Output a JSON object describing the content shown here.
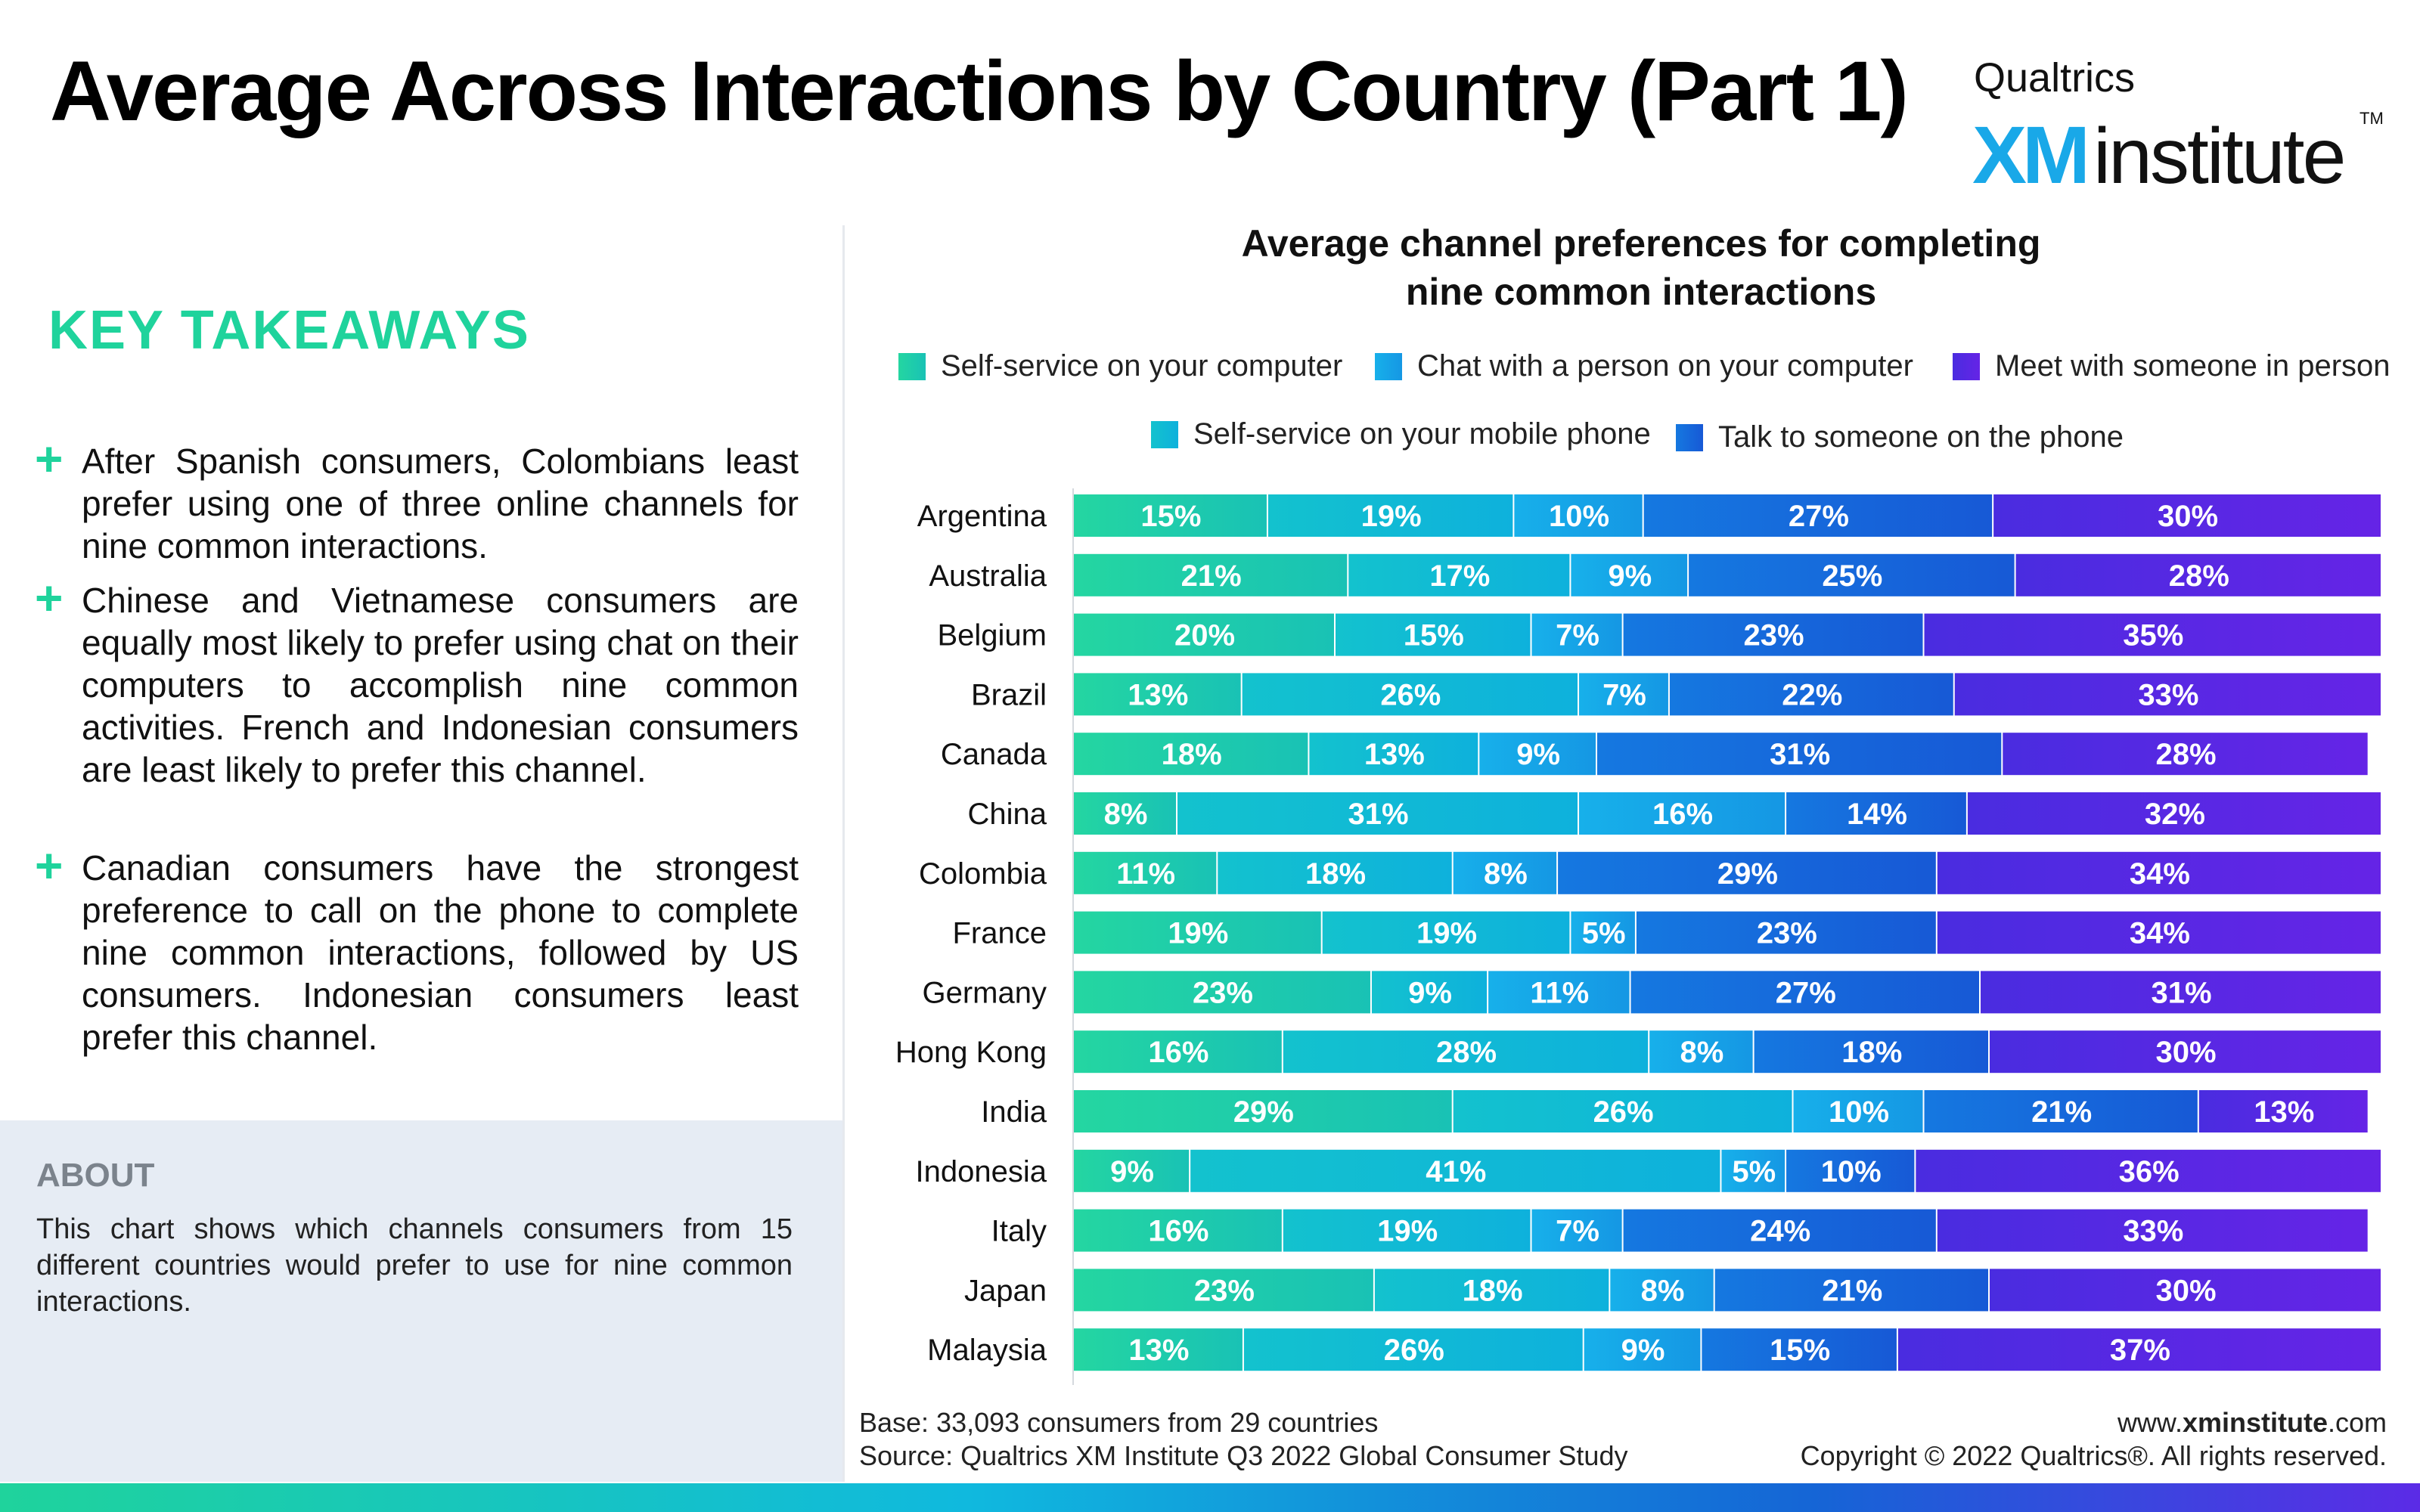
{
  "header": {
    "title": "Average Across Interactions by Country (Part 1)",
    "logo": {
      "top": "Qualtrics",
      "xm": "XM",
      "institute": "institute",
      "tm": "TM"
    }
  },
  "takeaways": {
    "heading": "KEY TAKEAWAYS",
    "plus_icon": "+",
    "items": [
      "After Spanish consumers, Colombians least prefer using one of three online channels for nine common interactions.",
      "Chinese and Vietnamese consumers are equally most likely to prefer using chat on their computers to accomplish nine common activities. French and Indonesian consumers are least likely to prefer this channel.",
      "Canadian consumers have the strongest preference to call on the phone to complete nine common interactions, followed by US consumers. Indonesian consumers least prefer this channel."
    ]
  },
  "about": {
    "heading": "ABOUT",
    "text": "This chart shows which channels consumers from 15 different countries would prefer to use for nine common interactions."
  },
  "footer": {
    "base": "Base: 33,093 consumers from 29 countries",
    "source": "Source: Qualtrics XM Institute Q3 2022 Global Consumer Study",
    "site_prefix": "www.",
    "site_bold": "xminstitute",
    "site_suffix": ".com",
    "copyright": "Copyright © 2022 Qualtrics®. All rights reserved."
  },
  "chart_data": {
    "type": "bar",
    "orientation": "horizontal",
    "stacked": true,
    "title_line1": "Average channel preferences for completing",
    "title_line2": "nine common interactions",
    "value_suffix": "%",
    "categories": [
      "Argentina",
      "Australia",
      "Belgium",
      "Brazil",
      "Canada",
      "China",
      "Colombia",
      "France",
      "Germany",
      "Hong Kong",
      "India",
      "Indonesia",
      "Italy",
      "Japan",
      "Malaysia"
    ],
    "series": [
      {
        "name": "Self-service on your computer",
        "color_start": "#24d6a1",
        "color_end": "#19c2b5",
        "values": [
          15,
          21,
          20,
          13,
          18,
          8,
          11,
          19,
          23,
          16,
          29,
          9,
          16,
          23,
          13
        ]
      },
      {
        "name": "Self-service on your mobile phone",
        "color_start": "#13c2ce",
        "color_end": "#0eb1dc",
        "values": [
          19,
          17,
          15,
          26,
          13,
          31,
          18,
          19,
          9,
          28,
          26,
          41,
          19,
          18,
          26
        ]
      },
      {
        "name": "Chat with a person on your computer",
        "color_start": "#17b0ea",
        "color_end": "#1597e4",
        "values": [
          10,
          9,
          7,
          7,
          9,
          16,
          8,
          5,
          11,
          8,
          10,
          5,
          7,
          8,
          9
        ]
      },
      {
        "name": "Talk to someone on the phone",
        "color_start": "#1578e0",
        "color_end": "#1759d6",
        "values": [
          27,
          25,
          23,
          22,
          31,
          14,
          29,
          23,
          27,
          18,
          21,
          10,
          24,
          21,
          15
        ]
      },
      {
        "name": "Meet with someone in person",
        "color_start": "#4a2ce0",
        "color_end": "#6524e6",
        "values": [
          30,
          28,
          35,
          33,
          28,
          32,
          34,
          34,
          31,
          30,
          13,
          36,
          33,
          30,
          37
        ]
      }
    ],
    "xlim": [
      0,
      100
    ],
    "legend_position": "top",
    "grid": false
  }
}
